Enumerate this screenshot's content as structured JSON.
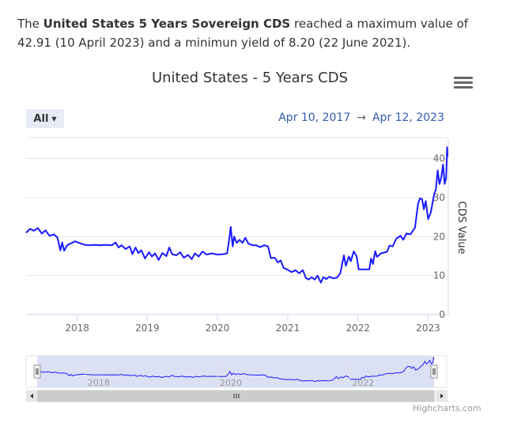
{
  "intro": {
    "prefix": "The ",
    "subject": "United States 5 Years Sovereign CDS",
    "suffix": " reached a maximum value of 42.91 (10 April 2023) and a minimun yield of 8.20 (22 June 2021)."
  },
  "chart_menu_icon": "hamburger-menu-icon",
  "range_selector": {
    "label": "All",
    "from": "Apr 10, 2017",
    "arrow": "→",
    "to": "Apr 12, 2023"
  },
  "credits": "Highcharts.com",
  "colors": {
    "line": "#1a1aff",
    "navigator_mask": "#cdd3f0",
    "grid": "#e6e6e6",
    "date_text": "#335cad"
  },
  "chart_data": {
    "type": "line",
    "title": "United States - 5 Years CDS",
    "ylabel": "CDS Value",
    "ylim": [
      0,
      45
    ],
    "y_ticks": [
      "0",
      "10",
      "20",
      "30",
      "40"
    ],
    "x_ticks": [
      "2018",
      "2019",
      "2020",
      "2021",
      "2022",
      "2023"
    ],
    "xlim": [
      "2017-04-10",
      "2023-04-12"
    ],
    "grid": true,
    "series": [
      {
        "values": [
          [
            "2017-04-10",
            21.0
          ],
          [
            "2017-05-01",
            22.0
          ],
          [
            "2017-05-20",
            21.5
          ],
          [
            "2017-06-10",
            22.2
          ],
          [
            "2017-07-01",
            20.8
          ],
          [
            "2017-07-20",
            21.6
          ],
          [
            "2017-08-10",
            20.2
          ],
          [
            "2017-09-01",
            20.6
          ],
          [
            "2017-09-20",
            19.8
          ],
          [
            "2017-10-05",
            16.5
          ],
          [
            "2017-10-15",
            18.5
          ],
          [
            "2017-10-25",
            16.4
          ],
          [
            "2017-11-10",
            17.8
          ],
          [
            "2017-12-01",
            18.3
          ],
          [
            "2017-12-20",
            18.8
          ],
          [
            "2018-01-15",
            18.3
          ],
          [
            "2018-02-10",
            17.9
          ],
          [
            "2018-03-01",
            17.8
          ],
          [
            "2018-04-01",
            17.9
          ],
          [
            "2018-05-01",
            17.8
          ],
          [
            "2018-06-01",
            17.9
          ],
          [
            "2018-07-01",
            17.8
          ],
          [
            "2018-07-20",
            18.5
          ],
          [
            "2018-08-05",
            17.2
          ],
          [
            "2018-08-20",
            17.8
          ],
          [
            "2018-09-10",
            16.8
          ],
          [
            "2018-10-01",
            17.5
          ],
          [
            "2018-10-15",
            15.5
          ],
          [
            "2018-11-01",
            17.2
          ],
          [
            "2018-11-15",
            15.8
          ],
          [
            "2018-12-01",
            16.5
          ],
          [
            "2018-12-20",
            14.4
          ],
          [
            "2019-01-10",
            16.0
          ],
          [
            "2019-01-25",
            14.9
          ],
          [
            "2019-02-10",
            15.7
          ],
          [
            "2019-03-01",
            14.0
          ],
          [
            "2019-03-20",
            15.8
          ],
          [
            "2019-04-10",
            15.0
          ],
          [
            "2019-04-25",
            17.2
          ],
          [
            "2019-05-10",
            15.5
          ],
          [
            "2019-06-01",
            15.2
          ],
          [
            "2019-06-20",
            16.0
          ],
          [
            "2019-07-10",
            14.6
          ],
          [
            "2019-08-01",
            15.3
          ],
          [
            "2019-08-20",
            14.2
          ],
          [
            "2019-09-05",
            15.7
          ],
          [
            "2019-09-25",
            14.9
          ],
          [
            "2019-10-15",
            16.2
          ],
          [
            "2019-11-05",
            15.4
          ],
          [
            "2019-12-01",
            15.7
          ],
          [
            "2020-01-01",
            15.4
          ],
          [
            "2020-02-01",
            15.5
          ],
          [
            "2020-02-20",
            15.7
          ],
          [
            "2020-03-01",
            19.0
          ],
          [
            "2020-03-10",
            22.5
          ],
          [
            "2020-03-20",
            17.5
          ],
          [
            "2020-03-28",
            20.0
          ],
          [
            "2020-04-10",
            18.4
          ],
          [
            "2020-04-25",
            19.2
          ],
          [
            "2020-05-10",
            18.4
          ],
          [
            "2020-05-25",
            19.7
          ],
          [
            "2020-06-10",
            18.2
          ],
          [
            "2020-07-01",
            17.8
          ],
          [
            "2020-07-20",
            17.8
          ],
          [
            "2020-08-10",
            17.3
          ],
          [
            "2020-09-01",
            17.8
          ],
          [
            "2020-09-20",
            17.5
          ],
          [
            "2020-10-05",
            14.5
          ],
          [
            "2020-10-25",
            14.6
          ],
          [
            "2020-11-10",
            13.4
          ],
          [
            "2020-11-25",
            13.9
          ],
          [
            "2020-12-10",
            12.0
          ],
          [
            "2021-01-01",
            11.5
          ],
          [
            "2021-01-20",
            10.9
          ],
          [
            "2021-02-10",
            11.4
          ],
          [
            "2021-03-01",
            10.6
          ],
          [
            "2021-03-20",
            11.4
          ],
          [
            "2021-04-05",
            9.4
          ],
          [
            "2021-04-20",
            9.0
          ],
          [
            "2021-05-05",
            9.6
          ],
          [
            "2021-05-20",
            9.0
          ],
          [
            "2021-06-05",
            10.0
          ],
          [
            "2021-06-22",
            8.2
          ],
          [
            "2021-07-05",
            9.6
          ],
          [
            "2021-07-20",
            9.1
          ],
          [
            "2021-08-05",
            9.7
          ],
          [
            "2021-08-25",
            9.3
          ],
          [
            "2021-09-15",
            9.5
          ],
          [
            "2021-10-01",
            10.6
          ],
          [
            "2021-10-20",
            15.2
          ],
          [
            "2021-10-30",
            12.5
          ],
          [
            "2021-11-15",
            14.9
          ],
          [
            "2021-11-25",
            13.7
          ],
          [
            "2021-12-10",
            16.2
          ],
          [
            "2021-12-25",
            15.0
          ],
          [
            "2022-01-05",
            11.6
          ],
          [
            "2022-02-01",
            11.6
          ],
          [
            "2022-03-01",
            11.6
          ],
          [
            "2022-03-10",
            14.4
          ],
          [
            "2022-03-20",
            13.0
          ],
          [
            "2022-04-01",
            16.3
          ],
          [
            "2022-04-10",
            14.8
          ],
          [
            "2022-05-01",
            15.7
          ],
          [
            "2022-05-15",
            15.9
          ],
          [
            "2022-06-01",
            16.1
          ],
          [
            "2022-06-15",
            17.7
          ],
          [
            "2022-07-01",
            17.5
          ],
          [
            "2022-07-20",
            19.5
          ],
          [
            "2022-08-10",
            20.2
          ],
          [
            "2022-08-25",
            19.2
          ],
          [
            "2022-09-10",
            20.8
          ],
          [
            "2022-10-01",
            20.6
          ],
          [
            "2022-10-25",
            22.3
          ],
          [
            "2022-11-10",
            28.5
          ],
          [
            "2022-11-20",
            29.8
          ],
          [
            "2022-12-01",
            29.6
          ],
          [
            "2022-12-10",
            27.0
          ],
          [
            "2022-12-20",
            29.1
          ],
          [
            "2023-01-01",
            24.5
          ],
          [
            "2023-01-15",
            26.2
          ],
          [
            "2023-02-01",
            30.8
          ],
          [
            "2023-02-10",
            32.0
          ],
          [
            "2023-02-20",
            37.0
          ],
          [
            "2023-03-01",
            33.5
          ],
          [
            "2023-03-10",
            35.0
          ],
          [
            "2023-03-20",
            38.5
          ],
          [
            "2023-03-28",
            33.5
          ],
          [
            "2023-04-05",
            35.0
          ],
          [
            "2023-04-10",
            42.91
          ],
          [
            "2023-04-12",
            40.5
          ]
        ]
      }
    ],
    "navigator_ticks": [
      "2018",
      "2020",
      "2022"
    ]
  }
}
